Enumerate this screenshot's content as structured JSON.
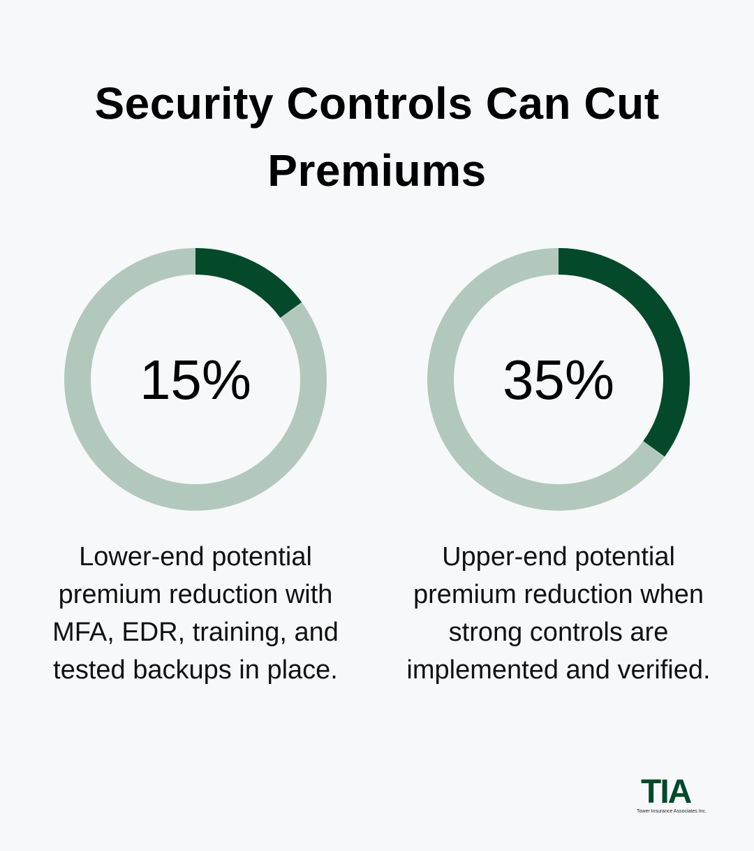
{
  "title": "Security Controls Can Cut Premiums",
  "chart_data": [
    {
      "type": "donut",
      "values": [
        15
      ],
      "value_labels": [
        "15%"
      ],
      "ylim": [
        0,
        100
      ],
      "caption": "Lower-end potential premium reduction with MFA, EDR, training, and tested backups in place.",
      "color": "#03492a",
      "track_color": "#b3c8bd"
    },
    {
      "type": "donut",
      "values": [
        35
      ],
      "value_labels": [
        "35%"
      ],
      "ylim": [
        0,
        100
      ],
      "caption": "Upper-end potential premium reduction when strong controls are implemented and verified.",
      "color": "#03492a",
      "track_color": "#b3c8bd"
    }
  ],
  "logo": {
    "name": "TIA",
    "tagline": "Tower Insurance Associates Inc."
  }
}
